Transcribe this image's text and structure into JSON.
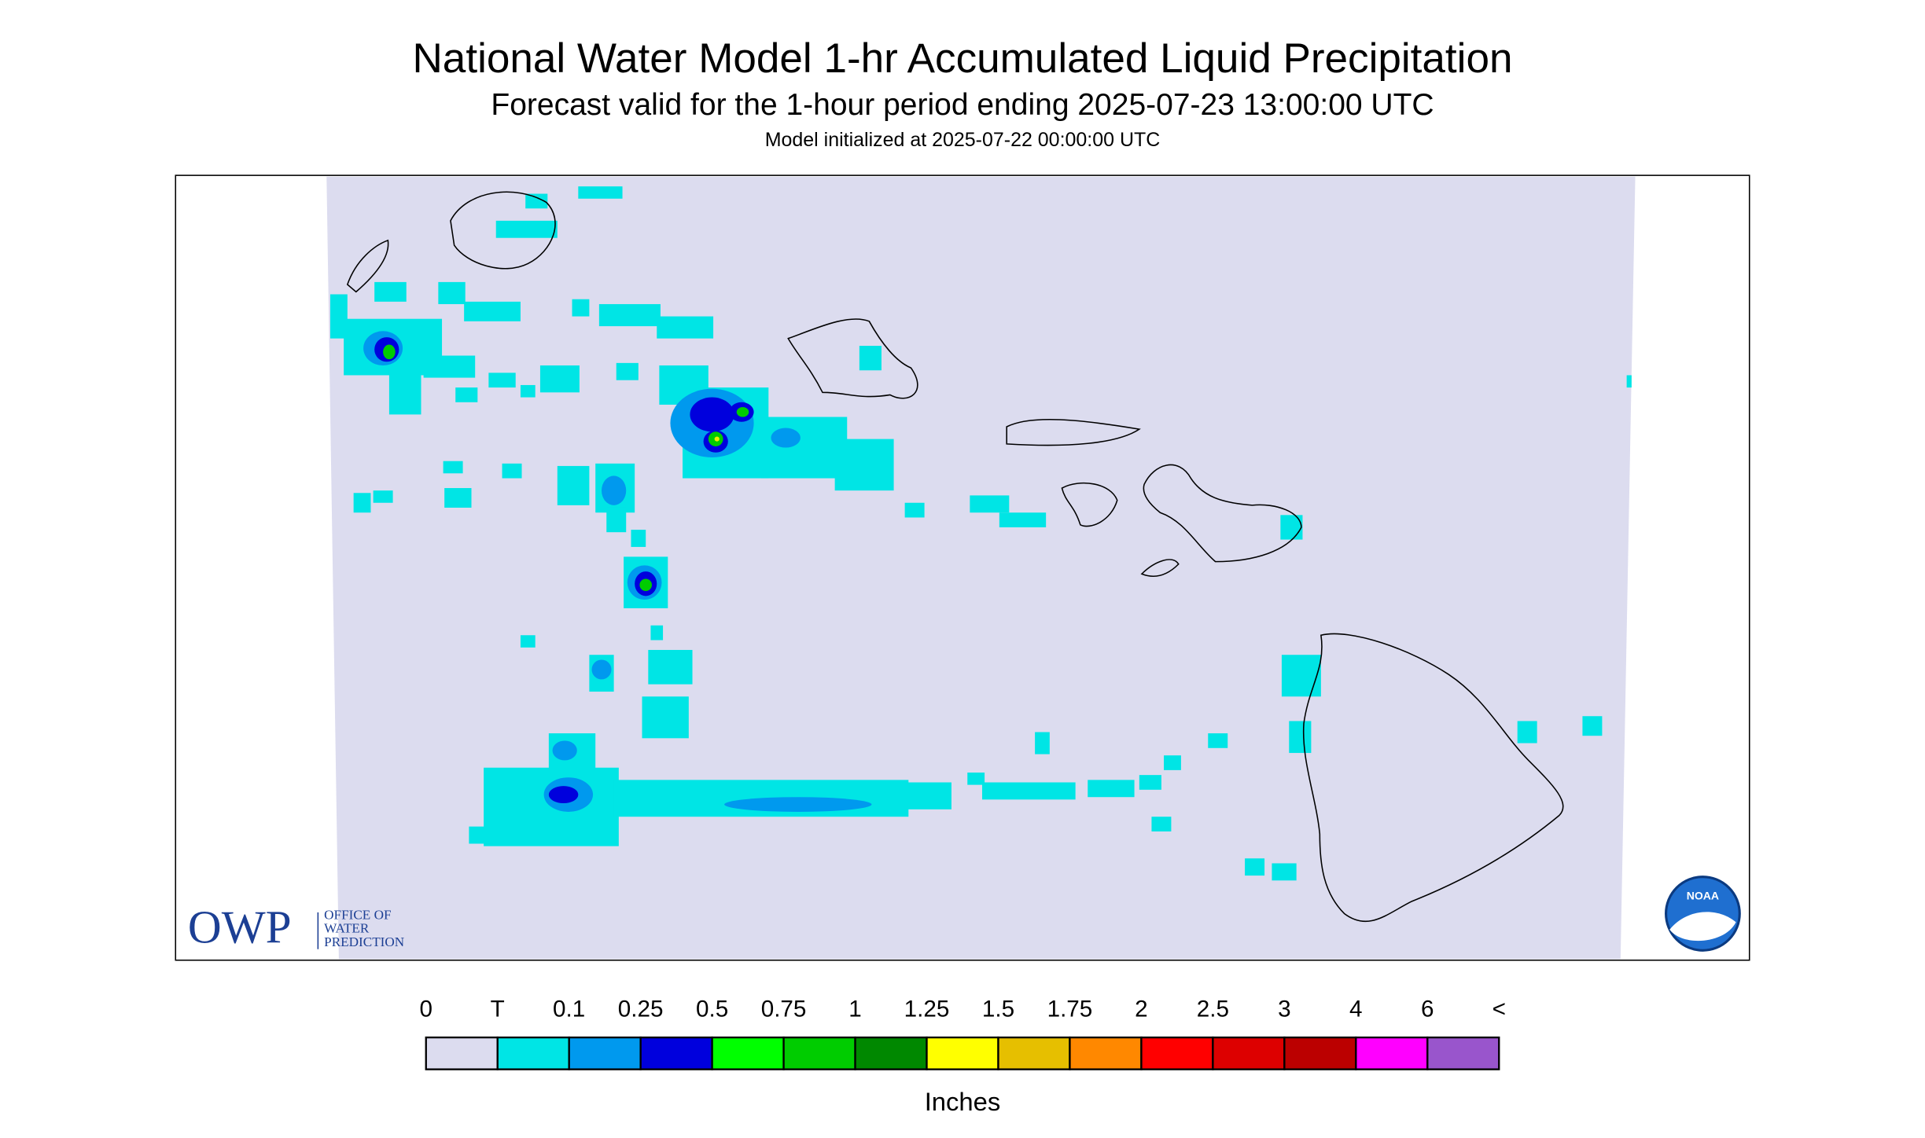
{
  "header": {
    "title": "National Water Model 1-hr Accumulated Liquid Precipitation",
    "subtitle": "Forecast valid for the 1-hour period ending 2025-07-23 13:00:00 UTC",
    "init": "Model initialized at 2025-07-22 00:00:00 UTC"
  },
  "legend": {
    "labels": [
      "0",
      "T",
      "0.1",
      "0.25",
      "0.5",
      "0.75",
      "1",
      "1.25",
      "1.5",
      "1.75",
      "2",
      "2.5",
      "3",
      "4",
      "6",
      "<"
    ],
    "colors": [
      "#dcdcef",
      "#00e5e5",
      "#0099ee",
      "#0000dd",
      "#00ff00",
      "#00cc00",
      "#008800",
      "#ffff00",
      "#e6bf00",
      "#ff8800",
      "#ff0000",
      "#dd0000",
      "#bb0000",
      "#ff00ff",
      "#9955cc"
    ],
    "unit": "Inches"
  },
  "logos": {
    "owp": "OWP",
    "owp_lines": [
      "OFFICE OF",
      "WATER",
      "PREDICTION"
    ],
    "noaa": "NOAA"
  }
}
